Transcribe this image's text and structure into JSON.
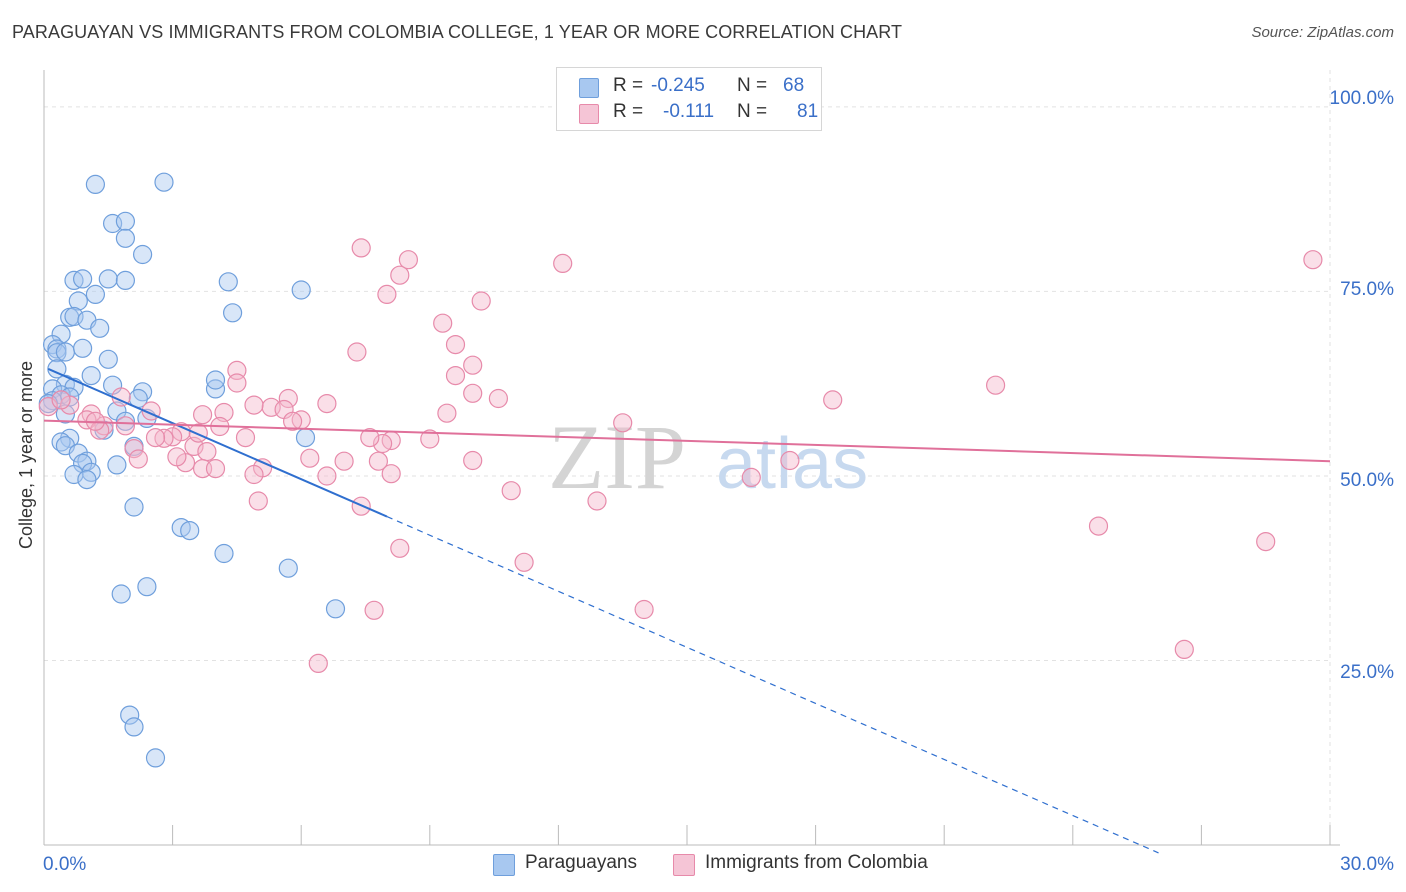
{
  "chart_data": {
    "type": "scatter",
    "title": "PARAGUAYAN VS IMMIGRANTS FROM COLOMBIA COLLEGE, 1 YEAR OR MORE CORRELATION CHART",
    "source": "Source: ZipAtlas.com",
    "xlabel": "",
    "ylabel": "College, 1 year or more",
    "xlim": [
      0,
      30
    ],
    "ylim": [
      0,
      105
    ],
    "x_tick_labels": [
      "0.0%",
      "30.0%"
    ],
    "y_ticks": [
      25,
      50,
      75,
      100
    ],
    "y_tick_labels": [
      "25.0%",
      "50.0%",
      "75.0%",
      "100.0%"
    ],
    "watermark": {
      "zip": "ZIP",
      "atlas": "atlas"
    },
    "legend": {
      "r_label": "R =",
      "n_label": "N =",
      "entries": [
        {
          "r": "-0.245",
          "n": "68",
          "color": "#a8c8f0"
        },
        {
          "r": "-0.111",
          "n": "81",
          "color": "#f5b9cd"
        }
      ]
    },
    "series": [
      {
        "name": "Paraguayans",
        "color": "#a8c8f0",
        "stroke": "#6f9fdc",
        "trend_color": "#2f6fcf",
        "trend": {
          "x0": 0.1,
          "y0": 64.5,
          "x1": 8.0,
          "y1": 44.5,
          "dash_to_x": 26.0
        },
        "points": [
          [
            1.2,
            89.5
          ],
          [
            2.8,
            89.8
          ],
          [
            1.6,
            84.2
          ],
          [
            1.9,
            84.5
          ],
          [
            1.9,
            82.2
          ],
          [
            2.3,
            80.0
          ],
          [
            0.7,
            76.5
          ],
          [
            0.9,
            76.7
          ],
          [
            1.5,
            76.7
          ],
          [
            1.9,
            76.5
          ],
          [
            4.3,
            76.3
          ],
          [
            6.0,
            75.2
          ],
          [
            1.2,
            74.6
          ],
          [
            0.8,
            73.7
          ],
          [
            4.4,
            72.1
          ],
          [
            0.6,
            71.5
          ],
          [
            0.7,
            71.6
          ],
          [
            1.0,
            71.1
          ],
          [
            1.3,
            70.0
          ],
          [
            0.4,
            69.2
          ],
          [
            0.2,
            67.8
          ],
          [
            0.3,
            67.2
          ],
          [
            0.3,
            66.7
          ],
          [
            0.5,
            66.8
          ],
          [
            0.9,
            67.3
          ],
          [
            1.5,
            65.8
          ],
          [
            0.3,
            64.5
          ],
          [
            1.1,
            63.6
          ],
          [
            0.5,
            62.4
          ],
          [
            0.7,
            62.0
          ],
          [
            0.2,
            61.8
          ],
          [
            1.6,
            62.3
          ],
          [
            4.0,
            61.8
          ],
          [
            2.3,
            61.4
          ],
          [
            0.4,
            61.0
          ],
          [
            0.6,
            60.7
          ],
          [
            0.2,
            60.2
          ],
          [
            0.1,
            59.8
          ],
          [
            2.2,
            60.5
          ],
          [
            1.7,
            58.8
          ],
          [
            0.5,
            58.4
          ],
          [
            2.4,
            57.8
          ],
          [
            1.9,
            57.4
          ],
          [
            1.4,
            56.2
          ],
          [
            0.6,
            55.1
          ],
          [
            6.1,
            55.2
          ],
          [
            0.4,
            54.6
          ],
          [
            0.5,
            54.1
          ],
          [
            2.1,
            54.0
          ],
          [
            0.8,
            53.1
          ],
          [
            1.0,
            52.0
          ],
          [
            0.9,
            51.7
          ],
          [
            1.7,
            51.5
          ],
          [
            1.1,
            50.5
          ],
          [
            0.7,
            50.2
          ],
          [
            1.0,
            49.5
          ],
          [
            2.1,
            45.8
          ],
          [
            3.2,
            43.0
          ],
          [
            3.4,
            42.6
          ],
          [
            4.2,
            39.5
          ],
          [
            5.7,
            37.5
          ],
          [
            2.4,
            35.0
          ],
          [
            1.8,
            34.0
          ],
          [
            6.8,
            32.0
          ],
          [
            2.0,
            17.6
          ],
          [
            2.1,
            16.0
          ],
          [
            2.6,
            11.8
          ],
          [
            4.0,
            63.0
          ]
        ]
      },
      {
        "name": "Immigrants from Colombia",
        "color": "#f5b9cd",
        "stroke": "#e78aaa",
        "trend_color": "#e0709a",
        "trend": {
          "x0": 0.0,
          "y0": 57.5,
          "x1": 30.0,
          "y1": 52.0
        },
        "points": [
          [
            7.4,
            80.9
          ],
          [
            8.5,
            79.3
          ],
          [
            12.1,
            78.8
          ],
          [
            29.6,
            79.3
          ],
          [
            8.3,
            77.2
          ],
          [
            8.0,
            74.6
          ],
          [
            10.2,
            73.7
          ],
          [
            9.3,
            70.7
          ],
          [
            9.6,
            67.8
          ],
          [
            7.3,
            66.8
          ],
          [
            10.0,
            65.0
          ],
          [
            4.5,
            64.3
          ],
          [
            4.5,
            62.6
          ],
          [
            9.6,
            63.6
          ],
          [
            22.2,
            62.3
          ],
          [
            10.0,
            61.2
          ],
          [
            10.6,
            60.5
          ],
          [
            5.7,
            60.5
          ],
          [
            18.4,
            60.3
          ],
          [
            1.8,
            60.7
          ],
          [
            6.6,
            59.8
          ],
          [
            5.3,
            59.3
          ],
          [
            5.6,
            59.0
          ],
          [
            2.5,
            58.8
          ],
          [
            4.2,
            58.6
          ],
          [
            1.1,
            58.4
          ],
          [
            3.7,
            58.3
          ],
          [
            1.0,
            57.6
          ],
          [
            6.0,
            57.6
          ],
          [
            9.4,
            58.5
          ],
          [
            13.5,
            57.2
          ],
          [
            4.1,
            56.7
          ],
          [
            1.4,
            56.8
          ],
          [
            1.9,
            56.8
          ],
          [
            3.2,
            56.0
          ],
          [
            3.0,
            55.3
          ],
          [
            2.8,
            55.1
          ],
          [
            4.7,
            55.2
          ],
          [
            8.1,
            54.8
          ],
          [
            7.9,
            54.4
          ],
          [
            3.5,
            54.0
          ],
          [
            2.1,
            53.7
          ],
          [
            3.8,
            53.3
          ],
          [
            2.2,
            52.3
          ],
          [
            10.0,
            52.1
          ],
          [
            6.2,
            52.4
          ],
          [
            7.0,
            52.0
          ],
          [
            7.8,
            52.0
          ],
          [
            17.4,
            52.1
          ],
          [
            3.3,
            51.8
          ],
          [
            3.7,
            51.0
          ],
          [
            4.0,
            51.0
          ],
          [
            5.1,
            51.1
          ],
          [
            4.9,
            50.2
          ],
          [
            6.6,
            50.0
          ],
          [
            8.1,
            50.3
          ],
          [
            16.5,
            49.8
          ],
          [
            10.9,
            48.0
          ],
          [
            5.0,
            46.6
          ],
          [
            7.4,
            45.9
          ],
          [
            12.9,
            46.6
          ],
          [
            8.3,
            40.2
          ],
          [
            11.2,
            38.3
          ],
          [
            24.6,
            43.2
          ],
          [
            28.5,
            41.1
          ],
          [
            14.0,
            31.9
          ],
          [
            7.7,
            31.8
          ],
          [
            26.6,
            26.5
          ],
          [
            6.4,
            24.6
          ],
          [
            0.1,
            59.4
          ],
          [
            0.6,
            59.6
          ],
          [
            0.4,
            60.3
          ],
          [
            3.1,
            52.6
          ],
          [
            1.3,
            56.2
          ],
          [
            2.6,
            55.2
          ],
          [
            1.2,
            57.4
          ],
          [
            3.6,
            55.8
          ],
          [
            5.8,
            57.4
          ],
          [
            7.6,
            55.2
          ],
          [
            9.0,
            55.0
          ],
          [
            4.9,
            59.6
          ]
        ]
      }
    ]
  }
}
